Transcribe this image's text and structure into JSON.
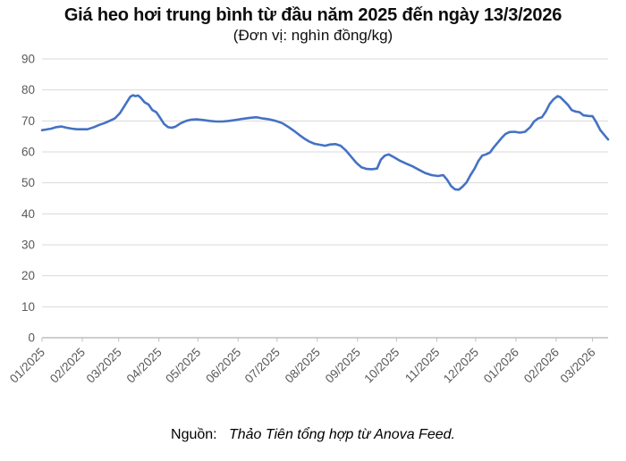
{
  "header": {
    "title": "Giá heo hơi trung bình từ đầu năm 2025 đến ngày 13/3/2026",
    "subtitle": "(Đơn vị: nghìn đồng/kg)"
  },
  "footer": {
    "source_prefix": "Nguồn:",
    "source_text": "Thảo Tiên tổng hợp từ Anova Feed."
  },
  "chart_data": {
    "type": "line",
    "title": "Giá heo hơi trung bình từ đầu năm 2025 đến ngày 13/3/2026",
    "unit_label": "(Đơn vị: nghìn đồng/kg)",
    "series_name": "Giá heo hơi trung bình (nghìn đồng/kg)",
    "legend": "none",
    "grid": "horizontal",
    "ylim": [
      0,
      90
    ],
    "ytick_step": 10,
    "x_range": [
      "2025-01-01",
      "2026-03-13"
    ],
    "xticks": [
      "01/2025",
      "02/2025",
      "03/2025",
      "04/2025",
      "05/2025",
      "06/2025",
      "07/2025",
      "08/2025",
      "09/2025",
      "10/2025",
      "11/2025",
      "12/2025",
      "01/2026",
      "02/2026",
      "03/2026"
    ],
    "colors": {
      "line": "#4472c4",
      "gridline": "#dadada",
      "axis": "#bfbfbf",
      "tick_label": "#595959"
    },
    "x": [
      "2025-01-01",
      "2025-01-04",
      "2025-01-08",
      "2025-01-12",
      "2025-01-16",
      "2025-01-20",
      "2025-01-24",
      "2025-01-28",
      "2025-02-01",
      "2025-02-05",
      "2025-02-10",
      "2025-02-14",
      "2025-02-18",
      "2025-02-22",
      "2025-02-26",
      "2025-03-02",
      "2025-03-05",
      "2025-03-08",
      "2025-03-10",
      "2025-03-12",
      "2025-03-14",
      "2025-03-16",
      "2025-03-18",
      "2025-03-21",
      "2025-03-24",
      "2025-03-27",
      "2025-03-30",
      "2025-04-02",
      "2025-04-05",
      "2025-04-08",
      "2025-04-11",
      "2025-04-14",
      "2025-04-18",
      "2025-04-22",
      "2025-04-26",
      "2025-04-30",
      "2025-05-05",
      "2025-05-10",
      "2025-05-15",
      "2025-05-20",
      "2025-05-25",
      "2025-05-30",
      "2025-06-05",
      "2025-06-10",
      "2025-06-15",
      "2025-06-20",
      "2025-06-25",
      "2025-06-30",
      "2025-07-05",
      "2025-07-10",
      "2025-07-14",
      "2025-07-18",
      "2025-07-22",
      "2025-07-26",
      "2025-07-30",
      "2025-08-03",
      "2025-08-07",
      "2025-08-11",
      "2025-08-15",
      "2025-08-19",
      "2025-08-23",
      "2025-08-27",
      "2025-08-31",
      "2025-09-04",
      "2025-09-08",
      "2025-09-12",
      "2025-09-16",
      "2025-09-19",
      "2025-09-22",
      "2025-09-25",
      "2025-09-29",
      "2025-10-03",
      "2025-10-08",
      "2025-10-13",
      "2025-10-18",
      "2025-10-23",
      "2025-10-28",
      "2025-11-02",
      "2025-11-06",
      "2025-11-09",
      "2025-11-12",
      "2025-11-15",
      "2025-11-18",
      "2025-11-21",
      "2025-11-24",
      "2025-11-27",
      "2025-11-30",
      "2025-12-03",
      "2025-12-06",
      "2025-12-09",
      "2025-12-12",
      "2025-12-15",
      "2025-12-18",
      "2025-12-21",
      "2025-12-24",
      "2025-12-27",
      "2025-12-31",
      "2026-01-04",
      "2026-01-08",
      "2026-01-12",
      "2026-01-15",
      "2026-01-18",
      "2026-01-21",
      "2026-01-24",
      "2026-01-27",
      "2026-01-30",
      "2026-02-02",
      "2026-02-04",
      "2026-02-07",
      "2026-02-10",
      "2026-02-13",
      "2026-02-16",
      "2026-02-19",
      "2026-02-22",
      "2026-02-26",
      "2026-03-01",
      "2026-03-04",
      "2026-03-07",
      "2026-03-09",
      "2026-03-11",
      "2026-03-13"
    ],
    "values": [
      67.0,
      67.2,
      67.5,
      68.0,
      68.2,
      67.8,
      67.5,
      67.3,
      67.3,
      67.3,
      68.0,
      68.7,
      69.3,
      70.0,
      70.8,
      72.5,
      74.5,
      76.5,
      77.8,
      78.3,
      78.0,
      78.2,
      77.5,
      76.0,
      75.3,
      73.5,
      72.8,
      71.0,
      69.0,
      68.0,
      67.8,
      68.2,
      69.3,
      70.0,
      70.4,
      70.5,
      70.3,
      70.0,
      69.8,
      69.8,
      70.0,
      70.3,
      70.7,
      71.0,
      71.2,
      70.8,
      70.5,
      70.0,
      69.3,
      68.0,
      66.8,
      65.5,
      64.3,
      63.3,
      62.6,
      62.3,
      62.0,
      62.4,
      62.5,
      62.0,
      60.5,
      58.5,
      56.5,
      55.0,
      54.5,
      54.4,
      54.6,
      57.5,
      58.8,
      59.2,
      58.3,
      57.3,
      56.3,
      55.4,
      54.3,
      53.2,
      52.5,
      52.2,
      52.5,
      51.0,
      49.0,
      47.9,
      47.8,
      48.8,
      50.2,
      52.5,
      54.5,
      57.0,
      58.8,
      59.2,
      59.8,
      61.5,
      63.0,
      64.5,
      65.8,
      66.4,
      66.5,
      66.2,
      66.5,
      68.0,
      69.8,
      70.8,
      71.2,
      73.0,
      75.5,
      77.0,
      78.0,
      77.7,
      76.5,
      75.2,
      73.5,
      73.0,
      72.8,
      71.8,
      71.6,
      71.5,
      69.5,
      67.0,
      66.0,
      65.0,
      64.0
    ]
  }
}
